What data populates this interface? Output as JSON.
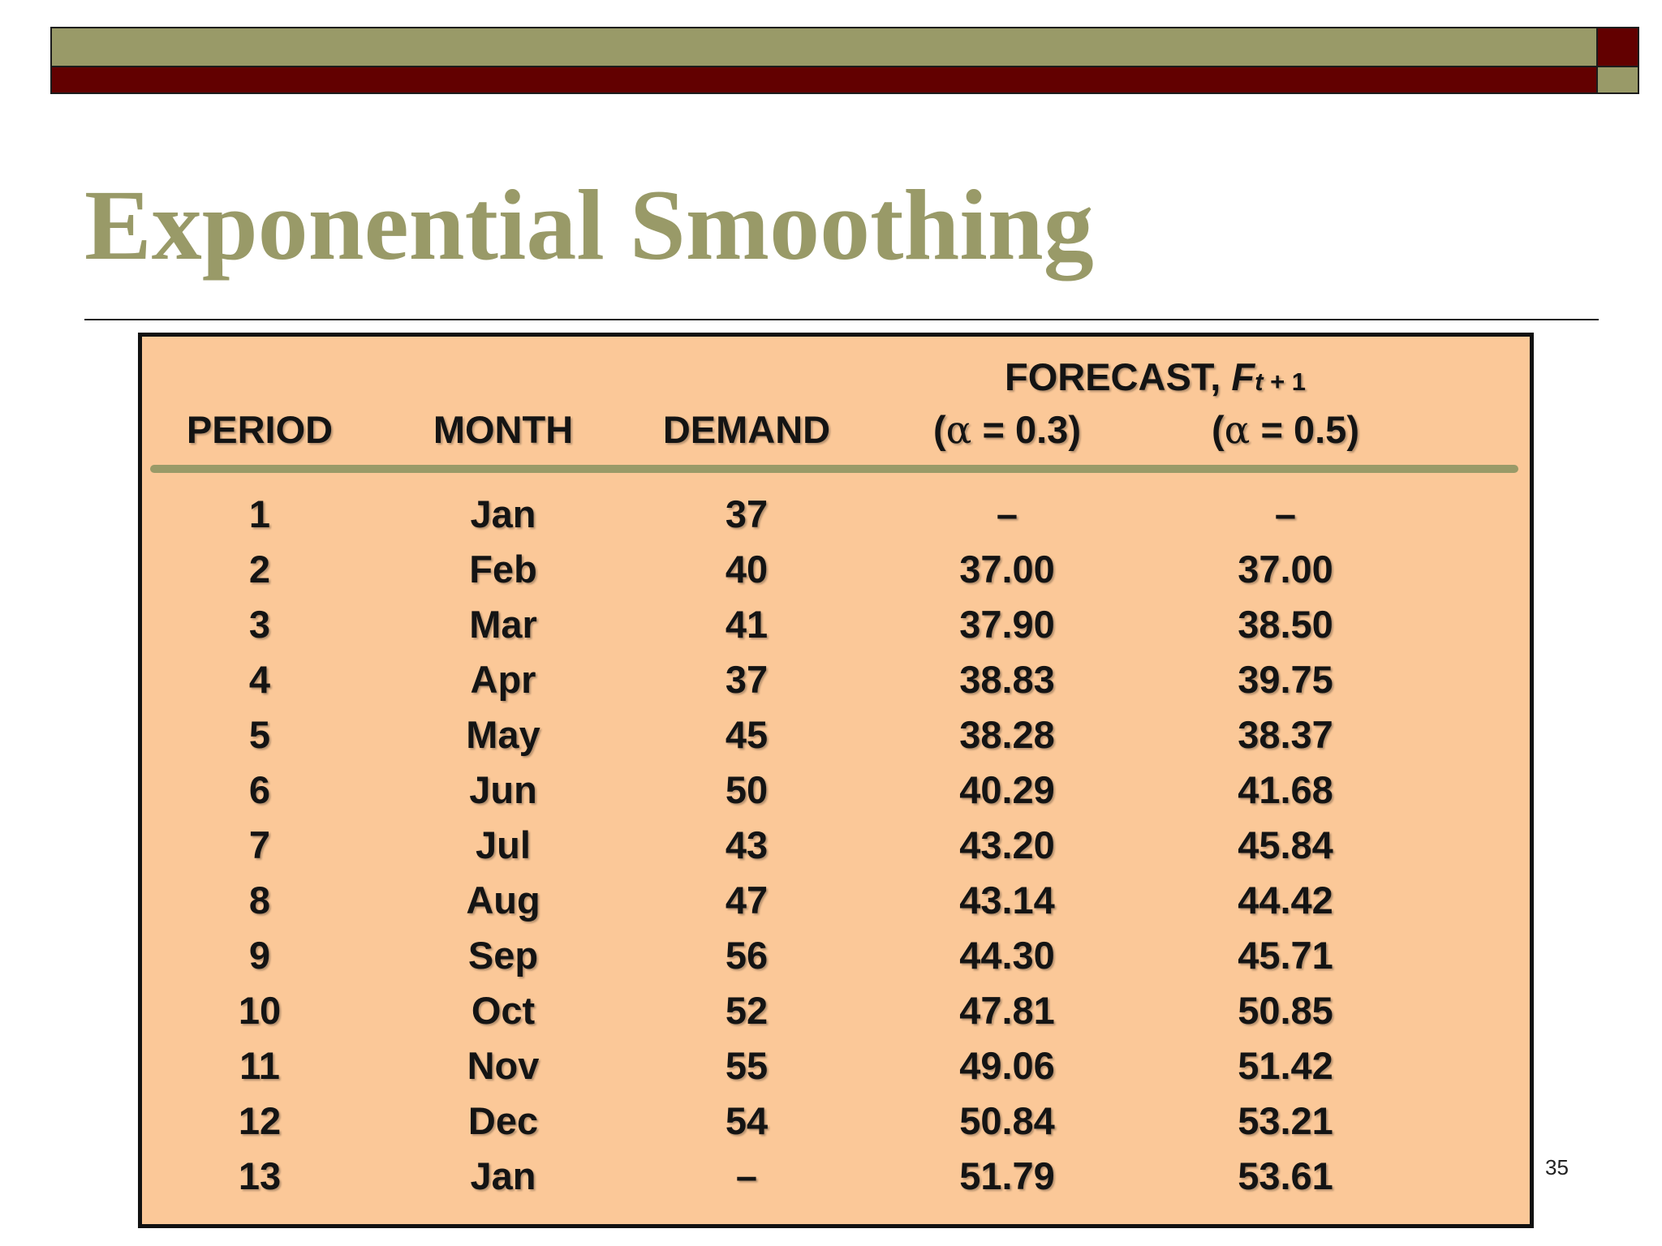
{
  "title": "Exponential Smoothing",
  "slide_number": "35",
  "table": {
    "headers": {
      "period": "PERIOD",
      "month": "MONTH",
      "demand": "DEMAND",
      "forecast": "FORECAST,",
      "forecast_symbol": "F",
      "forecast_subscript_t": "t",
      "forecast_subscript_rest": " + 1",
      "alpha_symbol": "α",
      "alpha1_value": " = 0.3)",
      "alpha2_value": " = 0.5)",
      "open_paren": "("
    },
    "rows": [
      [
        "1",
        "Jan",
        "37",
        "–",
        "–"
      ],
      [
        "2",
        "Feb",
        "40",
        "37.00",
        "37.00"
      ],
      [
        "3",
        "Mar",
        "41",
        "37.90",
        "38.50"
      ],
      [
        "4",
        "Apr",
        "37",
        "38.83",
        "39.75"
      ],
      [
        "5",
        "May",
        "45",
        "38.28",
        "38.37"
      ],
      [
        "6",
        "Jun",
        "50",
        "40.29",
        "41.68"
      ],
      [
        "7",
        "Jul",
        "43",
        "43.20",
        "45.84"
      ],
      [
        "8",
        "Aug",
        "47",
        "43.14",
        "44.42"
      ],
      [
        "9",
        "Sep",
        "56",
        "44.30",
        "45.71"
      ],
      [
        "10",
        "Oct",
        "52",
        "47.81",
        "50.85"
      ],
      [
        "11",
        "Nov",
        "55",
        "49.06",
        "51.42"
      ],
      [
        "12",
        "Dec",
        "54",
        "50.84",
        "53.21"
      ],
      [
        "13",
        "Jan",
        "–",
        "51.79",
        "53.61"
      ]
    ]
  }
}
